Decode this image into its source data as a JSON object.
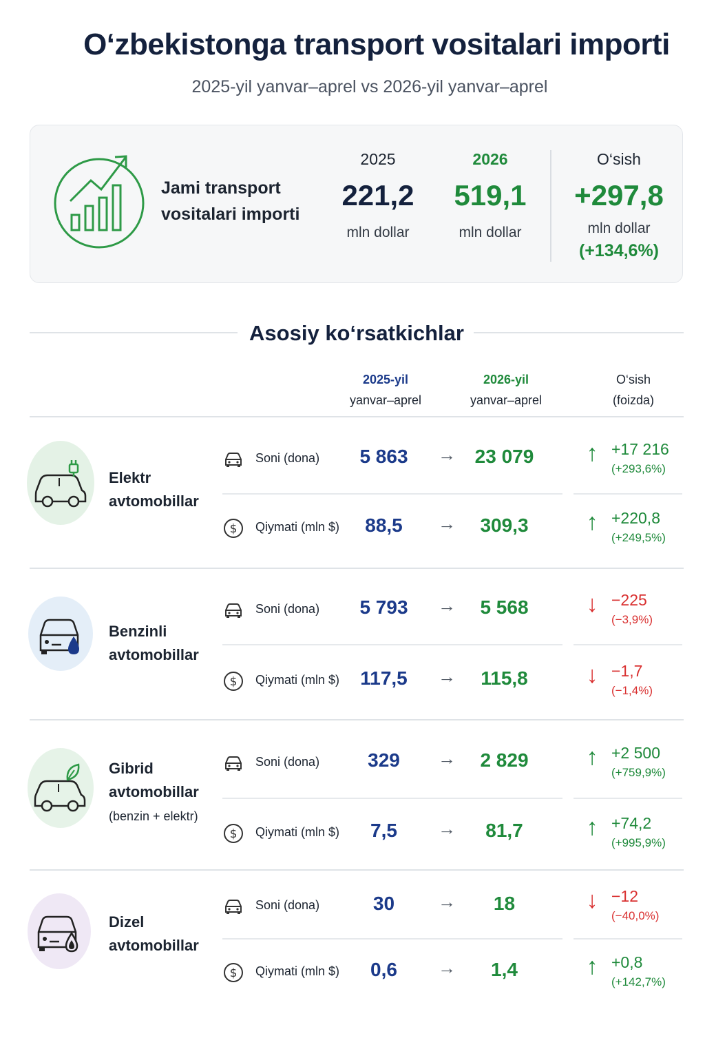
{
  "header": {
    "title": "O‘zbekistonga transport vositalari importi",
    "subtitle": "2025-yil yanvar–aprel vs 2026-yil yanvar–aprel"
  },
  "summary": {
    "label_line1": "Jami transport",
    "label_line2": "vositalari importi",
    "year_2025": "2025",
    "value_2025": "221,2",
    "unit_2025": "mln dollar",
    "year_2026": "2026",
    "value_2026": "519,1",
    "unit_2026": "mln dollar",
    "growth_label": "O‘sish",
    "growth_value": "+297,8",
    "growth_unit": "mln dollar",
    "growth_pct": "(+134,6%)"
  },
  "section": {
    "title": "Asosiy ko‘rsatkichlar",
    "col_2025_l1": "2025-yil",
    "col_2025_l2": "yanvar–aprel",
    "col_2026_l1": "2026-yil",
    "col_2026_l2": "yanvar–aprel",
    "col_growth_l1": "O‘sish",
    "col_growth_l2": "(foizda)"
  },
  "categories": [
    {
      "name_l1": "Elektr",
      "name_l2": "avtomobillar",
      "name_l3": "",
      "icon": "electric-car-icon",
      "rows": [
        {
          "label": "Soni (dona)",
          "v2025": "5 863",
          "arrow": "→",
          "v2026": "23 079",
          "dir": "↑",
          "abs": "+17 216",
          "pct": "(+293,6%)"
        },
        {
          "label": "Qiymati (mln $)",
          "v2025": "88,5",
          "arrow": "→",
          "v2026": "309,3",
          "dir": "↑",
          "abs": "+220,8",
          "pct": "(+249,5%)"
        }
      ]
    },
    {
      "name_l1": "Benzinli",
      "name_l2": "avtomobillar",
      "name_l3": "",
      "icon": "petrol-car-icon",
      "rows": [
        {
          "label": "Soni (dona)",
          "v2025": "5 793",
          "arrow": "→",
          "v2026": "5 568",
          "dir": "↓",
          "abs": "−225",
          "pct": "(−3,9%)"
        },
        {
          "label": "Qiymati (mln $)",
          "v2025": "117,5",
          "arrow": "→",
          "v2026": "115,8",
          "dir": "↓",
          "abs": "−1,7",
          "pct": "(−1,4%)"
        }
      ]
    },
    {
      "name_l1": "Gibrid",
      "name_l2": "avtomobillar",
      "name_l3": "(benzin + elektr)",
      "icon": "hybrid-car-icon",
      "rows": [
        {
          "label": "Soni (dona)",
          "v2025": "329",
          "arrow": "→",
          "v2026": "2 829",
          "dir": "↑",
          "abs": "+2 500",
          "pct": "(+759,9%)"
        },
        {
          "label": "Qiymati (mln $)",
          "v2025": "7,5",
          "arrow": "→",
          "v2026": "81,7",
          "dir": "↑",
          "abs": "+74,2",
          "pct": "(+995,9%)"
        }
      ]
    },
    {
      "name_l1": "Dizel",
      "name_l2": "avtomobillar",
      "name_l3": "",
      "icon": "diesel-car-icon",
      "rows": [
        {
          "label": "Soni (dona)",
          "v2025": "30",
          "arrow": "→",
          "v2026": "18",
          "dir": "↓",
          "abs": "−12",
          "pct": "(−40,0%)"
        },
        {
          "label": "Qiymati (mln $)",
          "v2025": "0,6",
          "arrow": "→",
          "v2026": "1,4",
          "dir": "↑",
          "abs": "+0,8",
          "pct": "(+142,7%)"
        }
      ]
    }
  ],
  "colors": {
    "navy": "#1b3a8a",
    "green": "#1f8a3b",
    "red": "#d93030",
    "electric_bg": "#e4f2e6",
    "petrol_bg": "#e4eef8",
    "hybrid_bg": "#e6f3e8",
    "diesel_bg": "#efe8f5"
  }
}
